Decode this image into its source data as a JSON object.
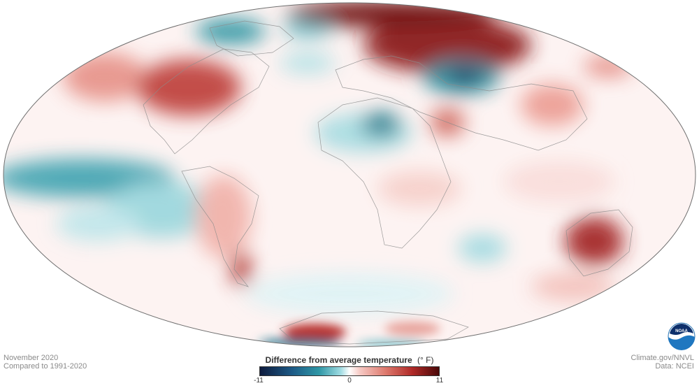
{
  "caption": {
    "date": "November 2020",
    "comparison": "Compared to 1991-2020"
  },
  "source": {
    "site": "Climate.gov/NNVL",
    "data": "Data: NCEI"
  },
  "legend": {
    "title": "Difference from average temperature",
    "unit": "(° F)",
    "min_label": "-11",
    "mid_label": "0",
    "max_label": "11",
    "min_value": -11,
    "max_value": 11,
    "colors": {
      "cold_extreme": "#0d1b3e",
      "cold": "#2f97a6",
      "neutral": "#ffffff",
      "warm": "#de7a6e",
      "warm_extreme": "#4a0808"
    }
  },
  "logo": {
    "name": "noaa-logo",
    "text": "NOAA"
  },
  "map": {
    "projection": "Mollweide",
    "ocean_color": "#ffffff",
    "outline_color": "#6f6f6f"
  }
}
